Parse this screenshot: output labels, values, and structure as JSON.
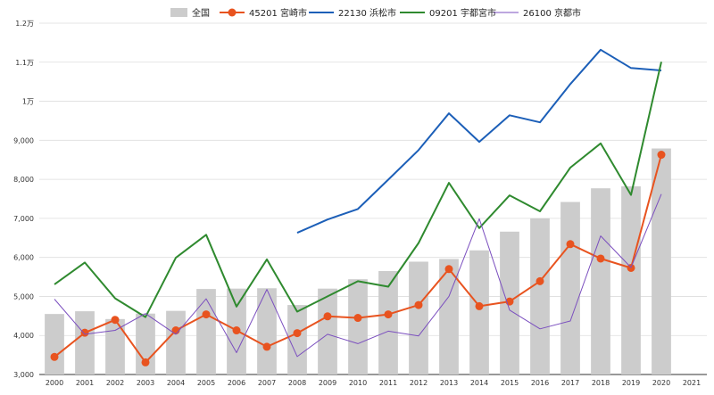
{
  "chart_data": {
    "type": "bar+line",
    "x": [
      "2000",
      "2001",
      "2002",
      "2003",
      "2004",
      "2005",
      "2006",
      "2007",
      "2008",
      "2009",
      "2010",
      "2011",
      "2012",
      "2013",
      "2014",
      "2015",
      "2016",
      "2017",
      "2018",
      "2019",
      "2020",
      "2021"
    ],
    "y_ticks": [
      {
        "value": 3000,
        "label": "3,000"
      },
      {
        "value": 4000,
        "label": "4,000"
      },
      {
        "value": 5000,
        "label": "5,000"
      },
      {
        "value": 6000,
        "label": "6,000"
      },
      {
        "value": 7000,
        "label": "7,000"
      },
      {
        "value": 8000,
        "label": "8,000"
      },
      {
        "value": 9000,
        "label": "9,000"
      },
      {
        "value": 10000,
        "label": "1万"
      },
      {
        "value": 11000,
        "label": "1.1万"
      },
      {
        "value": 12000,
        "label": "1.2万"
      }
    ],
    "ylim": [
      3000,
      12000
    ],
    "grid": true,
    "legend_position": "top",
    "series": [
      {
        "name": "全国",
        "kind": "bar",
        "color": "#cccccc",
        "values": [
          4550,
          4620,
          4420,
          4560,
          4630,
          5190,
          5200,
          5210,
          4780,
          5200,
          5440,
          5650,
          5890,
          5960,
          6180,
          6660,
          7000,
          7420,
          7770,
          7820,
          8790,
          null
        ]
      },
      {
        "name": "45201 宮崎市",
        "kind": "line-marker",
        "color": "#e8531f",
        "values": [
          3450,
          4070,
          4400,
          3310,
          4130,
          4540,
          4130,
          3710,
          4060,
          4490,
          4450,
          4540,
          4780,
          5700,
          4750,
          4870,
          5390,
          6340,
          5970,
          5730,
          8630,
          null
        ]
      },
      {
        "name": "22130 浜松市",
        "kind": "line",
        "color": "#1c5fb8",
        "values": [
          null,
          null,
          null,
          null,
          null,
          null,
          null,
          null,
          6630,
          6970,
          7240,
          7990,
          8750,
          9690,
          8960,
          9640,
          9460,
          10440,
          11320,
          10850,
          10790,
          null
        ]
      },
      {
        "name": "09201 宇都宮市",
        "kind": "line",
        "color": "#2f8a2f",
        "values": [
          5310,
          5870,
          4950,
          4470,
          5990,
          6580,
          4740,
          5950,
          4610,
          5000,
          5390,
          5250,
          6370,
          7910,
          6750,
          7590,
          7180,
          8300,
          8920,
          7600,
          11010,
          null
        ]
      },
      {
        "name": "26100 京都市",
        "kind": "line-thin",
        "color": "#7b4fbf",
        "values": [
          4930,
          4030,
          4130,
          4560,
          4030,
          4940,
          3560,
          5180,
          3460,
          4030,
          3790,
          4110,
          3990,
          5000,
          6990,
          4650,
          4170,
          4370,
          6550,
          5740,
          7620,
          null
        ]
      }
    ]
  }
}
